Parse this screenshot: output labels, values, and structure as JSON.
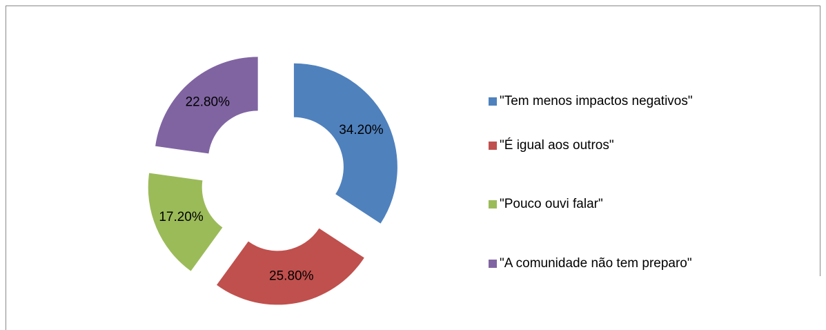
{
  "chart_data": {
    "type": "donut",
    "categories": [
      "\"Tem menos impactos negativos\"",
      "\"É igual aos outros\"",
      "\"Pouco ouvi falar\"",
      "\"A comunidade não tem preparo\""
    ],
    "values": [
      34.2,
      25.8,
      17.2,
      22.8
    ],
    "value_labels": [
      "34.20%",
      "25.80%",
      "17.20%",
      "22.80%"
    ],
    "colors": [
      "#4f81bd",
      "#c0504d",
      "#9bbb59",
      "#8064a2"
    ],
    "legend": "right"
  }
}
